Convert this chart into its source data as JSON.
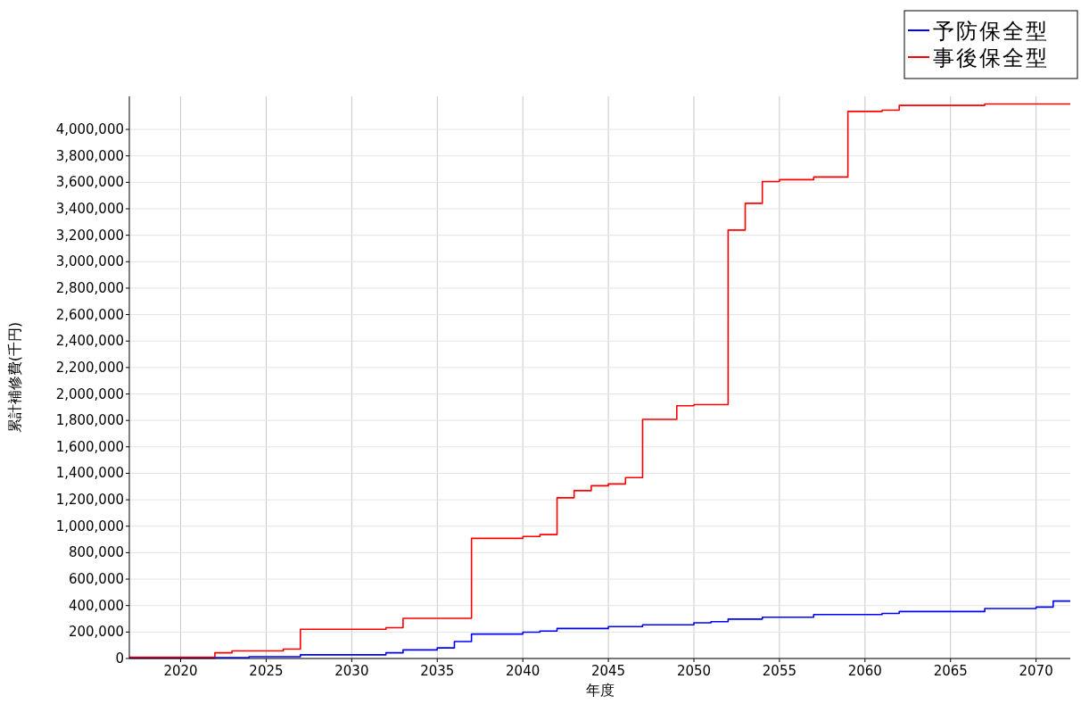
{
  "chart_data": {
    "type": "step",
    "xlabel": "年度",
    "ylabel": "累計補修費(千円)",
    "legend": "top right",
    "grid": true,
    "xlim": [
      2017,
      2072
    ],
    "xticks": [
      2020,
      2025,
      2030,
      2035,
      2040,
      2045,
      2050,
      2055,
      2060,
      2065,
      2070
    ],
    "ylim": [
      0,
      4250000
    ],
    "yticks": [
      {
        "value": 0,
        "label": "0"
      },
      {
        "value": 200000,
        "label": "200,000"
      },
      {
        "value": 400000,
        "label": "400,000"
      },
      {
        "value": 600000,
        "label": "600,000"
      },
      {
        "value": 800000,
        "label": "800,000"
      },
      {
        "value": 1000000,
        "label": "1,000,000"
      },
      {
        "value": 1200000,
        "label": "1,200,000"
      },
      {
        "value": 1400000,
        "label": "1,400,000"
      },
      {
        "value": 1600000,
        "label": "1,600,000"
      },
      {
        "value": 1800000,
        "label": "1,800,000"
      },
      {
        "value": 2000000,
        "label": "2,000,000"
      },
      {
        "value": 2200000,
        "label": "2,200,000"
      },
      {
        "value": 2400000,
        "label": "2,400,000"
      },
      {
        "value": 2600000,
        "label": "2,600,000"
      },
      {
        "value": 2800000,
        "label": "2,800,000"
      },
      {
        "value": 3000000,
        "label": "3,000,000"
      },
      {
        "value": 3200000,
        "label": "3,200,000"
      },
      {
        "value": 3400000,
        "label": "3,400,000"
      },
      {
        "value": 3600000,
        "label": "3,600,000"
      },
      {
        "value": 3800000,
        "label": "3,800,000"
      },
      {
        "value": 4000000,
        "label": "4,000,000"
      }
    ],
    "series": [
      {
        "name": "予防保全型",
        "color": "#0000ff",
        "x": [
          2017,
          2022,
          2024,
          2027,
          2032,
          2033,
          2035,
          2036,
          2037,
          2040,
          2041,
          2042,
          2045,
          2047,
          2050,
          2051,
          2052,
          2054,
          2057,
          2061,
          2062,
          2067,
          2070,
          2071,
          2072
        ],
        "values": [
          3000,
          7000,
          14000,
          28000,
          43000,
          65000,
          80000,
          128000,
          185000,
          199000,
          207000,
          227000,
          241000,
          255000,
          270000,
          278000,
          298000,
          312000,
          332000,
          341000,
          355000,
          378000,
          389000,
          434000,
          434000
        ]
      },
      {
        "name": "事後保全型",
        "color": "#ff0000",
        "x": [
          2017,
          2022,
          2023,
          2026,
          2027,
          2032,
          2033,
          2037,
          2040,
          2041,
          2042,
          2043,
          2044,
          2045,
          2046,
          2047,
          2049,
          2050,
          2052,
          2053,
          2054,
          2055,
          2057,
          2059,
          2061,
          2062,
          2067,
          2072
        ],
        "values": [
          10000,
          43000,
          57000,
          71000,
          221000,
          233000,
          304000,
          908000,
          923000,
          937000,
          1215000,
          1269000,
          1306000,
          1320000,
          1368000,
          1808000,
          1911000,
          1919000,
          3239000,
          3441000,
          3606000,
          3620000,
          3640000,
          4136000,
          4145000,
          4182000,
          4193000,
          4193000
        ]
      }
    ]
  }
}
